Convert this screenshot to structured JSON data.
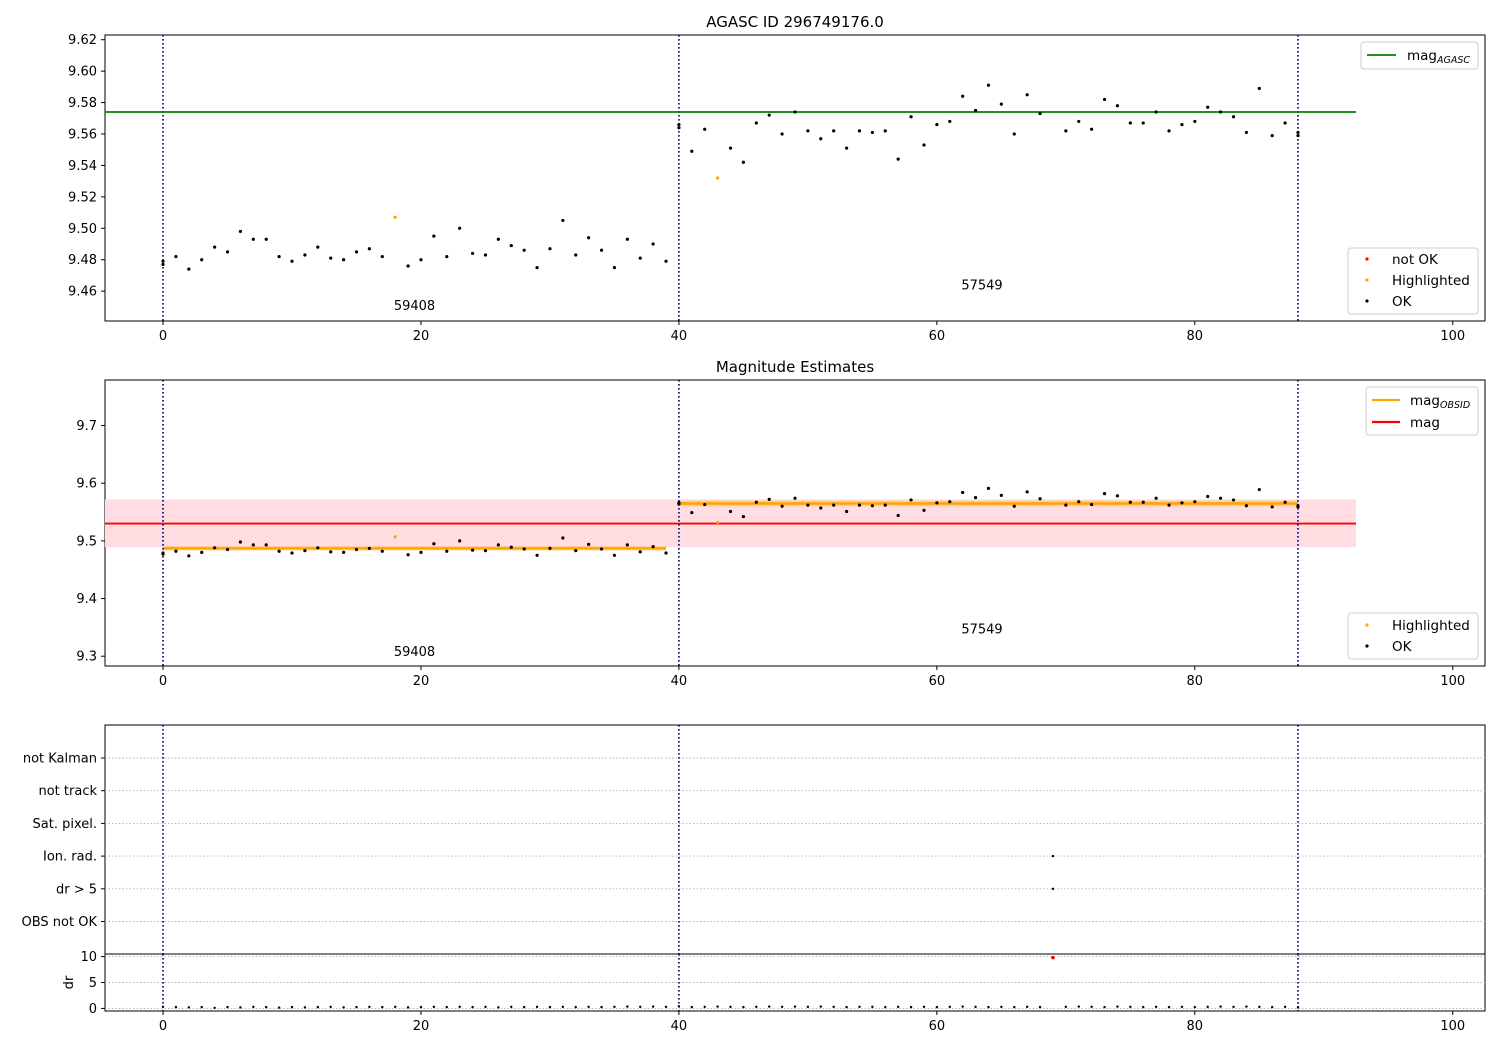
{
  "chart_data": [
    {
      "type": "scatter",
      "title": "AGASC ID 296749176.0",
      "xlim": [
        -4.5,
        102.5
      ],
      "ylim": [
        9.441,
        9.623
      ],
      "xticks": [
        "0",
        "20",
        "40",
        "60",
        "80",
        "100"
      ],
      "xtick_values": [
        0,
        20,
        40,
        60,
        80,
        100
      ],
      "yticks": [
        "9.46",
        "9.48",
        "9.50",
        "9.52",
        "9.54",
        "9.56",
        "9.58",
        "9.60",
        "9.62"
      ],
      "ytick_values": [
        9.46,
        9.48,
        9.5,
        9.52,
        9.54,
        9.56,
        9.58,
        9.6,
        9.62
      ],
      "obs_boundaries": [
        0,
        40,
        88
      ],
      "obs_labels": [
        {
          "x": 19.5,
          "y": 9.448,
          "text": "59408"
        },
        {
          "x": 63.5,
          "y": 9.461,
          "text": "57549"
        }
      ],
      "hlines": [
        {
          "name": "mag_AGASC",
          "y": 9.574,
          "xmin": -4.5,
          "xmax": 92.5,
          "color": "#008000"
        }
      ],
      "legend_lines": [
        {
          "text": "mag",
          "sub": "AGASC",
          "color": "#008000"
        }
      ],
      "legend_points": [
        {
          "text": "not OK",
          "color": "#ff0000"
        },
        {
          "text": "Highlighted",
          "color": "#ffa500"
        },
        {
          "text": "OK",
          "color": "#000000"
        }
      ],
      "legend_position": "upper-right / lower-right",
      "highlighted": [
        {
          "x": 18,
          "y": 9.507
        },
        {
          "x": 43,
          "y": 9.532
        }
      ],
      "ok": [
        [
          0,
          9.477
        ],
        [
          0,
          9.479
        ],
        [
          1,
          9.482
        ],
        [
          2,
          9.474
        ],
        [
          3,
          9.48
        ],
        [
          4,
          9.488
        ],
        [
          5,
          9.485
        ],
        [
          6,
          9.498
        ],
        [
          7,
          9.493
        ],
        [
          8,
          9.493
        ],
        [
          9,
          9.482
        ],
        [
          10,
          9.479
        ],
        [
          11,
          9.483
        ],
        [
          12,
          9.488
        ],
        [
          13,
          9.481
        ],
        [
          14,
          9.48
        ],
        [
          15,
          9.485
        ],
        [
          16,
          9.487
        ],
        [
          17,
          9.482
        ],
        [
          19,
          9.476
        ],
        [
          20,
          9.48
        ],
        [
          21,
          9.495
        ],
        [
          22,
          9.482
        ],
        [
          23,
          9.5
        ],
        [
          24,
          9.484
        ],
        [
          25,
          9.483
        ],
        [
          26,
          9.493
        ],
        [
          27,
          9.489
        ],
        [
          28,
          9.486
        ],
        [
          29,
          9.475
        ],
        [
          30,
          9.487
        ],
        [
          31,
          9.505
        ],
        [
          32,
          9.483
        ],
        [
          33,
          9.494
        ],
        [
          34,
          9.486
        ],
        [
          35,
          9.475
        ],
        [
          36,
          9.493
        ],
        [
          37,
          9.481
        ],
        [
          38,
          9.49
        ],
        [
          39,
          9.479
        ],
        [
          40,
          9.564
        ],
        [
          40,
          9.566
        ],
        [
          41,
          9.549
        ],
        [
          42,
          9.563
        ],
        [
          44,
          9.551
        ],
        [
          45,
          9.542
        ],
        [
          46,
          9.567
        ],
        [
          47,
          9.572
        ],
        [
          48,
          9.56
        ],
        [
          49,
          9.574
        ],
        [
          50,
          9.562
        ],
        [
          51,
          9.557
        ],
        [
          52,
          9.562
        ],
        [
          53,
          9.551
        ],
        [
          54,
          9.562
        ],
        [
          55,
          9.561
        ],
        [
          56,
          9.562
        ],
        [
          57,
          9.544
        ],
        [
          58,
          9.571
        ],
        [
          59,
          9.553
        ],
        [
          60,
          9.566
        ],
        [
          61,
          9.568
        ],
        [
          62,
          9.584
        ],
        [
          63,
          9.575
        ],
        [
          64,
          9.591
        ],
        [
          65,
          9.579
        ],
        [
          66,
          9.56
        ],
        [
          67,
          9.585
        ],
        [
          68,
          9.573
        ],
        [
          70,
          9.562
        ],
        [
          71,
          9.568
        ],
        [
          72,
          9.563
        ],
        [
          73,
          9.582
        ],
        [
          74,
          9.578
        ],
        [
          75,
          9.567
        ],
        [
          76,
          9.567
        ],
        [
          77,
          9.574
        ],
        [
          78,
          9.562
        ],
        [
          79,
          9.566
        ],
        [
          80,
          9.568
        ],
        [
          81,
          9.577
        ],
        [
          82,
          9.574
        ],
        [
          83,
          9.571
        ],
        [
          84,
          9.561
        ],
        [
          85,
          9.589
        ],
        [
          86,
          9.559
        ],
        [
          87,
          9.567
        ],
        [
          88,
          9.561
        ],
        [
          88,
          9.559
        ]
      ]
    },
    {
      "type": "scatter",
      "title": "Magnitude Estimates",
      "xlim": [
        -4.5,
        102.5
      ],
      "ylim": [
        9.283,
        9.779
      ],
      "xticks": [
        "0",
        "20",
        "40",
        "60",
        "80",
        "100"
      ],
      "xtick_values": [
        0,
        20,
        40,
        60,
        80,
        100
      ],
      "yticks": [
        "9.3",
        "9.4",
        "9.5",
        "9.6",
        "9.7"
      ],
      "ytick_values": [
        9.3,
        9.4,
        9.5,
        9.6,
        9.7
      ],
      "obs_boundaries": [
        0,
        40,
        88
      ],
      "obs_labels": [
        {
          "x": 19.5,
          "y": 9.3,
          "text": "59408"
        },
        {
          "x": 63.5,
          "y": 9.339,
          "text": "57549"
        }
      ],
      "mag": {
        "y": 9.53,
        "band": [
          9.489,
          9.572
        ],
        "xmin": -4.5,
        "xmax": 92.5,
        "color": "#ff0000",
        "band_color": "#ffdde0"
      },
      "mag_obsid": [
        {
          "xmin": 0,
          "xmax": 39,
          "y": 9.487,
          "band": [
            9.483,
            9.491
          ]
        },
        {
          "xmin": 40,
          "xmax": 88,
          "y": 9.565,
          "band": [
            9.56,
            9.57
          ]
        }
      ],
      "legend_lines": [
        {
          "text": "mag",
          "sub": "OBSID",
          "color": "#ffa500"
        },
        {
          "text": "mag",
          "sub": "",
          "color": "#ff0000"
        }
      ],
      "legend_points": [
        {
          "text": "Highlighted",
          "color": "#ffa500"
        },
        {
          "text": "OK",
          "color": "#000000"
        }
      ],
      "legend_position": "upper-right / lower-right"
    },
    {
      "type": "scatter",
      "title": "",
      "xlim": [
        -4.5,
        102.5
      ],
      "xticks": [
        "0",
        "20",
        "40",
        "60",
        "80",
        "100"
      ],
      "xtick_values": [
        0,
        20,
        40,
        60,
        80,
        100
      ],
      "categories": [
        "not Kalman",
        "not track",
        "Sat. pixel.",
        "Ion. rad.",
        "dr > 5",
        "OBS not OK"
      ],
      "flags": [
        {
          "x": 69,
          "category": "Ion. rad."
        },
        {
          "x": 69,
          "category": "dr > 5"
        }
      ],
      "dr_ylabel": "dr",
      "dr_ylim": [
        -0.5,
        10.5
      ],
      "dr_yticks": [
        "0",
        "5",
        "10"
      ],
      "dr_ytick_values": [
        0,
        5,
        10
      ],
      "dr_outlier": {
        "x": 69,
        "y": 9.8
      },
      "dr": [
        0.3,
        0.25,
        0.2,
        0.25,
        0.1,
        0.25,
        0.2,
        0.3,
        0.25,
        0.15,
        0.25,
        0.2,
        0.25,
        0.3,
        0.2,
        0.25,
        0.3,
        0.25,
        0.3,
        0.2,
        0.25,
        0.3,
        0.25,
        0.3,
        0.25,
        0.3,
        0.2,
        0.3,
        0.25,
        0.3,
        0.25,
        0.3,
        0.25,
        0.3,
        0.25,
        0.3,
        0.35,
        0.3,
        0.35,
        0.3,
        0.4,
        0.25,
        0.3,
        0.35,
        0.3,
        0.25,
        0.3,
        0.35,
        0.3,
        0.35,
        0.3,
        0.35,
        0.3,
        0.25,
        0.3,
        0.3,
        0.25,
        0.3,
        0.25,
        0.3,
        0.25,
        0.3,
        0.35,
        0.3,
        0.25,
        0.3,
        0.25,
        0.3,
        0.25,
        null,
        0.3,
        0.35,
        0.3,
        0.25,
        0.35,
        0.3,
        0.25,
        0.3,
        0.25,
        0.3,
        0.25,
        0.3,
        0.35,
        0.3,
        0.35,
        0.3,
        0.25,
        0.3,
        0.2
      ]
    }
  ]
}
